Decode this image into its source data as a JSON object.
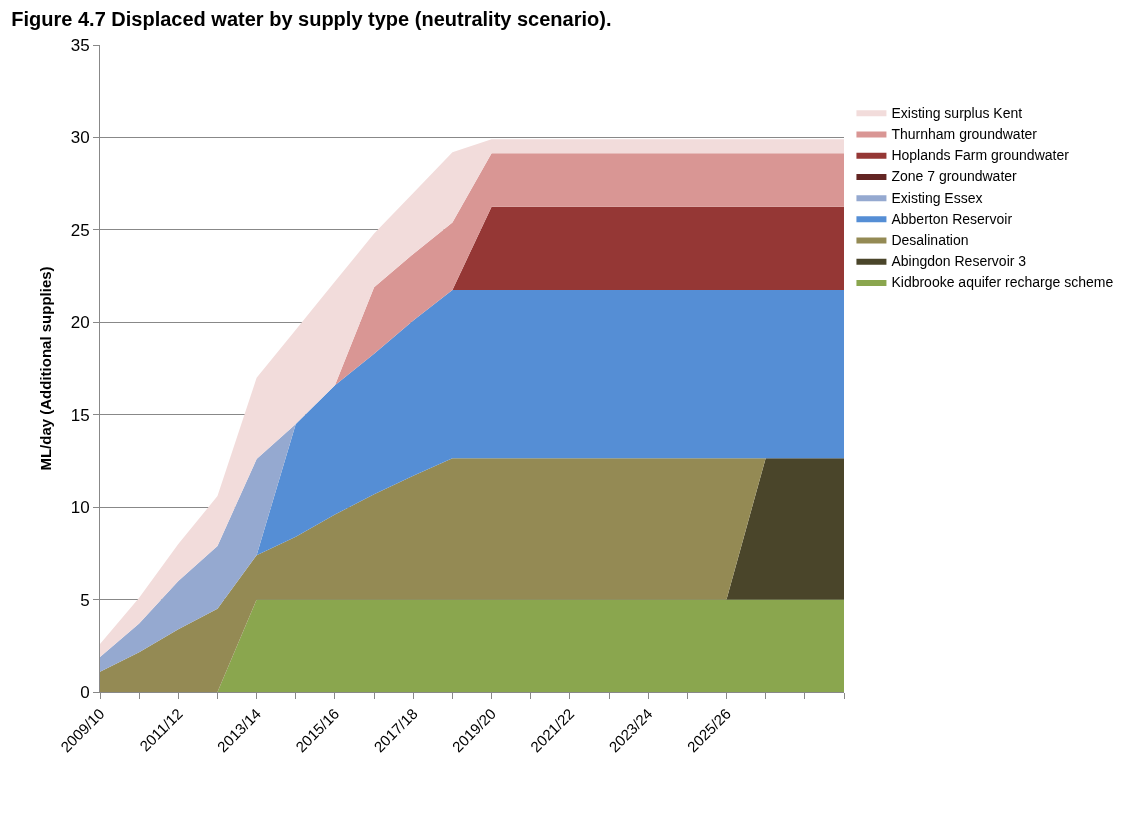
{
  "chart_data": {
    "type": "area",
    "stacked": true,
    "title": "Figure 4.7 Displaced water by supply type (neutrality scenario).",
    "ylabel": "ML/day (Additional supplies)",
    "categories": [
      "2009/10",
      null,
      "2011/12",
      null,
      "2013/14",
      null,
      "2015/16",
      null,
      "2017/18",
      null,
      "2019/20",
      null,
      "2021/22",
      null,
      "2023/24",
      null,
      "2025/26",
      null,
      null,
      null
    ],
    "ylim": [
      0,
      35
    ],
    "yticks": [
      0,
      5,
      10,
      15,
      20,
      25,
      30,
      35
    ],
    "grid": "y",
    "legend": "right",
    "series": [
      {
        "name": "Kidbrooke aquifer recharge scheme",
        "color": "#8aa64e",
        "values": [
          null,
          null,
          null,
          0,
          5,
          5,
          5,
          5,
          5,
          5,
          5,
          5,
          5,
          5,
          5,
          5,
          5,
          5,
          5,
          5
        ]
      },
      {
        "name": "Abingdon Reservoir 3",
        "color": "#4a452a",
        "values": [
          null,
          null,
          null,
          null,
          null,
          null,
          null,
          null,
          null,
          null,
          null,
          null,
          null,
          null,
          null,
          null,
          0,
          7.65,
          7.65,
          7.65
        ]
      },
      {
        "name": "Desalination",
        "color": "#948a54",
        "values": [
          1.1,
          2.15,
          3.4,
          4.5,
          2.4,
          3.4,
          4.6,
          5.7,
          6.7,
          7.65,
          7.65,
          7.65,
          7.65,
          7.65,
          7.65,
          7.65,
          7.65,
          0,
          null,
          null
        ]
      },
      {
        "name": "Abberton Reservoir",
        "color": "#558ed5",
        "values": [
          null,
          null,
          null,
          null,
          0,
          6.1,
          7.0,
          7.6,
          8.4,
          9.1,
          9.1,
          9.1,
          9.1,
          9.1,
          9.1,
          9.1,
          9.1,
          9.1,
          9.1,
          9.1
        ]
      },
      {
        "name": "Existing Essex",
        "color": "#95a9d0",
        "values": [
          0.8,
          1.55,
          2.6,
          3.4,
          5.2,
          0,
          null,
          null,
          null,
          null,
          null,
          null,
          null,
          null,
          null,
          null,
          null,
          null,
          null,
          null
        ]
      },
      {
        "name": "Zone 7 groundwater",
        "color": "#632523",
        "values": [
          null,
          null,
          null,
          null,
          null,
          null,
          null,
          null,
          null,
          null,
          null,
          null,
          null,
          null,
          null,
          null,
          null,
          null,
          null,
          null
        ]
      },
      {
        "name": "Hoplands Farm groundwater",
        "color": "#953735",
        "values": [
          null,
          null,
          null,
          null,
          null,
          null,
          null,
          null,
          null,
          0,
          4.5,
          4.5,
          4.5,
          4.5,
          4.5,
          4.5,
          4.5,
          4.5,
          4.5,
          4.5
        ]
      },
      {
        "name": "Thurnham groundwater",
        "color": "#d99694",
        "values": [
          null,
          null,
          null,
          null,
          null,
          null,
          0,
          3.6,
          3.6,
          3.65,
          2.9,
          2.9,
          2.9,
          2.9,
          2.9,
          2.9,
          2.9,
          2.9,
          2.9,
          2.9
        ]
      },
      {
        "name": "Existing surplus Kent",
        "color": "#f2dcdb",
        "values": [
          0.7,
          1.4,
          2.0,
          2.7,
          4.4,
          5.1,
          5.6,
          2.9,
          3.3,
          3.8,
          0.75,
          0.75,
          0.75,
          0.75,
          0.75,
          0.75,
          0.75,
          0.75,
          0.75,
          0.75
        ]
      }
    ]
  }
}
